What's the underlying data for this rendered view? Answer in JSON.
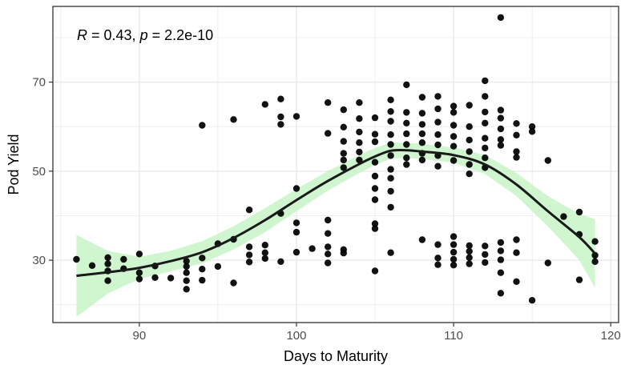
{
  "chart_data": {
    "type": "scatter",
    "title": "",
    "xlabel": "Days to Maturity",
    "ylabel": "Pod Yield",
    "xlim": [
      84.5,
      120.5
    ],
    "ylim": [
      16,
      87
    ],
    "x_ticks": [
      90,
      100,
      110,
      120
    ],
    "y_ticks": [
      30,
      50,
      70
    ],
    "grid": true,
    "annotation": {
      "r_label": "R",
      "r_text": " = 0.43, ",
      "p_label": "p",
      "p_text": " = 2.2e-10"
    },
    "colors": {
      "points": "#000000",
      "smooth_line": "#1a1a1a",
      "ribbon": "#c8f5c8",
      "grid": "#ebebeb",
      "panel_border": "#333333"
    },
    "points": [
      [
        86,
        30.2
      ],
      [
        87,
        28.8
      ],
      [
        88,
        30.6
      ],
      [
        88,
        29.2
      ],
      [
        88,
        27.6
      ],
      [
        88,
        25.4
      ],
      [
        89,
        30.2
      ],
      [
        89,
        28.1
      ],
      [
        90,
        31.4
      ],
      [
        90,
        27.2
      ],
      [
        90,
        25.8
      ],
      [
        91,
        28.7
      ],
      [
        91,
        26.1
      ],
      [
        92,
        26.0
      ],
      [
        93,
        29.8
      ],
      [
        93,
        28.6
      ],
      [
        93,
        27.2
      ],
      [
        93,
        25.4
      ],
      [
        93,
        23.5
      ],
      [
        94,
        60.3
      ],
      [
        94,
        30.5
      ],
      [
        94,
        28.0
      ],
      [
        94,
        25.5
      ],
      [
        95,
        28.6
      ],
      [
        95,
        33.7
      ],
      [
        96,
        61.6
      ],
      [
        96,
        34.7
      ],
      [
        96,
        24.9
      ],
      [
        97,
        41.3
      ],
      [
        97,
        33.0
      ],
      [
        97,
        31.2
      ],
      [
        97,
        29.6
      ],
      [
        98,
        65.0
      ],
      [
        98,
        33.4
      ],
      [
        98,
        31.7
      ],
      [
        98,
        30.4
      ],
      [
        99,
        66.2
      ],
      [
        99,
        62.2
      ],
      [
        99,
        60.5
      ],
      [
        99,
        40.5
      ],
      [
        99,
        29.7
      ],
      [
        100,
        62.3
      ],
      [
        100,
        46.1
      ],
      [
        100,
        38.4
      ],
      [
        100,
        36.3
      ],
      [
        100,
        31.8
      ],
      [
        101,
        32.6
      ],
      [
        102,
        65.4
      ],
      [
        102,
        58.5
      ],
      [
        102,
        39.0
      ],
      [
        102,
        36.0
      ],
      [
        102,
        33.0
      ],
      [
        102,
        31.4
      ],
      [
        102,
        29.4
      ],
      [
        103,
        63.8
      ],
      [
        103,
        59.9
      ],
      [
        103,
        56.7
      ],
      [
        103,
        54.0
      ],
      [
        103,
        52.5
      ],
      [
        103,
        50.8
      ],
      [
        103,
        32.4
      ],
      [
        103,
        31.6
      ],
      [
        104,
        65.4
      ],
      [
        104,
        61.8
      ],
      [
        104,
        58.8
      ],
      [
        104,
        56.4
      ],
      [
        104,
        54.3
      ],
      [
        104,
        52.5
      ],
      [
        105,
        62.0
      ],
      [
        105,
        58.3
      ],
      [
        105,
        56.6
      ],
      [
        105,
        52.0
      ],
      [
        105,
        48.9
      ],
      [
        105,
        46.1
      ],
      [
        105,
        43.6
      ],
      [
        105,
        38.2
      ],
      [
        105,
        37.1
      ],
      [
        105,
        27.6
      ],
      [
        106,
        66.0
      ],
      [
        106,
        63.4
      ],
      [
        106,
        61.2
      ],
      [
        106,
        58.2
      ],
      [
        106,
        56.0
      ],
      [
        106,
        53.5
      ],
      [
        106,
        50.4
      ],
      [
        106,
        48.4
      ],
      [
        106,
        45.5
      ],
      [
        106,
        41.9
      ],
      [
        106,
        31.7
      ],
      [
        107,
        69.4
      ],
      [
        107,
        63.2
      ],
      [
        107,
        60.8
      ],
      [
        107,
        58.4
      ],
      [
        107,
        56.0
      ],
      [
        107,
        53.0
      ],
      [
        107,
        51.5
      ],
      [
        108,
        66.6
      ],
      [
        108,
        63.0
      ],
      [
        108,
        60.5
      ],
      [
        108,
        58.4
      ],
      [
        108,
        56.4
      ],
      [
        108,
        54.0
      ],
      [
        108,
        52.5
      ],
      [
        108,
        34.6
      ],
      [
        109,
        66.8
      ],
      [
        109,
        64.0
      ],
      [
        109,
        61.0
      ],
      [
        109,
        58.2
      ],
      [
        109,
        55.9
      ],
      [
        109,
        53.5
      ],
      [
        109,
        51.1
      ],
      [
        109,
        33.5
      ],
      [
        109,
        30.5
      ],
      [
        109,
        29.0
      ],
      [
        110,
        64.6
      ],
      [
        110,
        63.2
      ],
      [
        110,
        60.3
      ],
      [
        110,
        57.8
      ],
      [
        110,
        55.6
      ],
      [
        110,
        52.4
      ],
      [
        110,
        35.3
      ],
      [
        110,
        33.5
      ],
      [
        110,
        31.8
      ],
      [
        110,
        30.2
      ],
      [
        110,
        28.9
      ],
      [
        111,
        64.8
      ],
      [
        111,
        60.0
      ],
      [
        111,
        57.0
      ],
      [
        111,
        54.4
      ],
      [
        111,
        51.5
      ],
      [
        111,
        49.4
      ],
      [
        111,
        33.3
      ],
      [
        111,
        32.0
      ],
      [
        111,
        30.6
      ],
      [
        111,
        29.2
      ],
      [
        112,
        70.3
      ],
      [
        112,
        66.8
      ],
      [
        112,
        63.3
      ],
      [
        112,
        60.8
      ],
      [
        112,
        57.4
      ],
      [
        112,
        55.2
      ],
      [
        112,
        53.0
      ],
      [
        112,
        50.8
      ],
      [
        112,
        33.2
      ],
      [
        112,
        31.3
      ],
      [
        112,
        29.5
      ],
      [
        113,
        84.5
      ],
      [
        113,
        63.7
      ],
      [
        113,
        61.9
      ],
      [
        113,
        59.5
      ],
      [
        113,
        57.1
      ],
      [
        113,
        55.8
      ],
      [
        113,
        34.0
      ],
      [
        113,
        32.1
      ],
      [
        113,
        30.1
      ],
      [
        113,
        27.2
      ],
      [
        113,
        22.6
      ],
      [
        114,
        60.7
      ],
      [
        114,
        58.1
      ],
      [
        114,
        54.4
      ],
      [
        114,
        53.1
      ],
      [
        114,
        34.6
      ],
      [
        114,
        31.7
      ],
      [
        114,
        25.2
      ],
      [
        115,
        60.0
      ],
      [
        115,
        58.9
      ],
      [
        115,
        21.0
      ],
      [
        116,
        52.4
      ],
      [
        116,
        29.4
      ],
      [
        117,
        39.8
      ],
      [
        118,
        40.8
      ],
      [
        118,
        25.6
      ],
      [
        118,
        35.8
      ],
      [
        119,
        34.2
      ],
      [
        119,
        31.1
      ],
      [
        119,
        29.7
      ]
    ],
    "smooth": {
      "x": [
        86,
        88,
        90,
        92,
        94,
        96,
        98,
        100,
        102,
        104,
        105,
        106,
        107,
        108,
        110,
        112,
        114,
        116,
        118,
        119
      ],
      "y": [
        26.5,
        27.3,
        28.3,
        29.8,
        31.8,
        35.0,
        39.0,
        43.5,
        47.8,
        51.6,
        53.3,
        54.6,
        54.7,
        54.4,
        53.6,
        51.5,
        47.0,
        41.0,
        35.2,
        31.5
      ],
      "lower": [
        17.3,
        22.5,
        25.8,
        27.5,
        29.3,
        32.4,
        36.3,
        41.0,
        45.6,
        49.6,
        51.4,
        52.8,
        53.0,
        52.7,
        51.9,
        49.4,
        44.4,
        37.6,
        30.0,
        23.8
      ],
      "upper": [
        35.7,
        32.1,
        30.8,
        32.1,
        34.3,
        37.6,
        41.7,
        46.0,
        50.0,
        53.6,
        55.2,
        56.4,
        56.4,
        56.1,
        55.3,
        53.6,
        49.6,
        44.4,
        40.4,
        39.2
      ]
    }
  }
}
